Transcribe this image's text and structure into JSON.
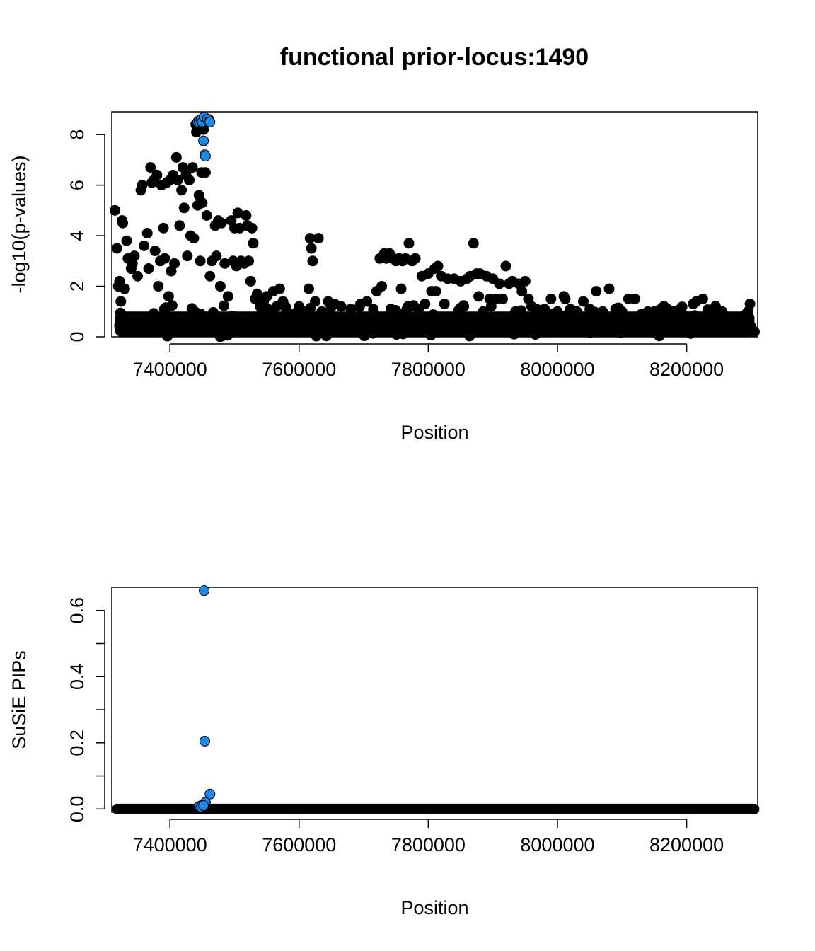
{
  "title": "functional prior-locus:1490",
  "colors": {
    "background": "#ffffff",
    "points": "#000000",
    "highlight": "#1e88e5"
  },
  "chart_data": [
    {
      "type": "scatter",
      "xlabel": "Position",
      "ylabel": "-log10(p-values)",
      "xlim": [
        7310000,
        8310000
      ],
      "ylim": [
        0,
        8.9
      ],
      "xticks": [
        7400000,
        7600000,
        7800000,
        8000000,
        8200000
      ],
      "xtick_labels": [
        "7400000",
        "7600000",
        "7800000",
        "8000000",
        "8200000"
      ],
      "yticks": [
        0,
        2,
        4,
        6,
        8
      ],
      "ytick_labels": [
        "0",
        "2",
        "4",
        "6",
        "8"
      ],
      "grid": false,
      "series": [
        {
          "points": [
            [
              7315000,
              5.0
            ],
            [
              7318000,
              3.5
            ],
            [
              7320000,
              2.0
            ],
            [
              7322000,
              2.2
            ],
            [
              7324000,
              1.4
            ],
            [
              7326000,
              4.6
            ],
            [
              7327000,
              4.5
            ],
            [
              7330000,
              1.9
            ],
            [
              7333000,
              3.8
            ],
            [
              7335000,
              3.1
            ],
            [
              7340000,
              2.7
            ],
            [
              7342000,
              2.9
            ],
            [
              7345000,
              3.2
            ],
            [
              7350000,
              2.4
            ],
            [
              7355000,
              5.8
            ],
            [
              7357000,
              6.0
            ],
            [
              7360000,
              3.6
            ],
            [
              7365000,
              4.1
            ],
            [
              7367000,
              2.7
            ],
            [
              7370000,
              6.7
            ],
            [
              7372000,
              6.1
            ],
            [
              7375000,
              6.2
            ],
            [
              7377000,
              3.4
            ],
            [
              7380000,
              6.4
            ],
            [
              7382000,
              2.0
            ],
            [
              7385000,
              3.0
            ],
            [
              7387000,
              6.0
            ],
            [
              7390000,
              4.3
            ],
            [
              7392000,
              3.1
            ],
            [
              7395000,
              6.1
            ],
            [
              7398000,
              1.6
            ],
            [
              7400000,
              6.2
            ],
            [
              7402000,
              2.6
            ],
            [
              7405000,
              6.4
            ],
            [
              7407000,
              2.9
            ],
            [
              7410000,
              7.1
            ],
            [
              7412000,
              6.2
            ],
            [
              7415000,
              4.4
            ],
            [
              7418000,
              5.8
            ],
            [
              7420000,
              6.7
            ],
            [
              7422000,
              5.1
            ],
            [
              7425000,
              6.4
            ],
            [
              7427000,
              3.2
            ],
            [
              7430000,
              6.2
            ],
            [
              7432000,
              4.0
            ],
            [
              7435000,
              6.7
            ],
            [
              7437000,
              3.9
            ],
            [
              7440000,
              8.4
            ],
            [
              7441000,
              8.1
            ],
            [
              7443000,
              5.2
            ],
            [
              7445000,
              5.6
            ],
            [
              7447000,
              3.0
            ],
            [
              7449000,
              6.5
            ],
            [
              7450000,
              5.3
            ],
            [
              7452000,
              8.2
            ],
            [
              7455000,
              6.5
            ],
            [
              7457000,
              4.8
            ],
            [
              7460000,
              8.6
            ],
            [
              7462000,
              2.4
            ],
            [
              7465000,
              3.0
            ],
            [
              7470000,
              4.4
            ],
            [
              7472000,
              3.2
            ],
            [
              7475000,
              4.6
            ],
            [
              7478000,
              2.0
            ],
            [
              7480000,
              4.5
            ],
            [
              7485000,
              2.9
            ],
            [
              7490000,
              1.6
            ],
            [
              7495000,
              4.6
            ],
            [
              7498000,
              3.0
            ],
            [
              7500000,
              4.3
            ],
            [
              7503000,
              2.8
            ],
            [
              7505000,
              4.9
            ],
            [
              7508000,
              4.3
            ],
            [
              7510000,
              3.0
            ],
            [
              7515000,
              2.9
            ],
            [
              7518000,
              4.8
            ],
            [
              7520000,
              4.4
            ],
            [
              7522000,
              3.0
            ],
            [
              7525000,
              2.2
            ],
            [
              7527000,
              4.3
            ],
            [
              7529000,
              3.7
            ],
            [
              7532000,
              1.5
            ],
            [
              7535000,
              1.7
            ],
            [
              7540000,
              1.2
            ],
            [
              7545000,
              1.4
            ],
            [
              7550000,
              1.6
            ],
            [
              7555000,
              1.0
            ],
            [
              7560000,
              1.8
            ],
            [
              7565000,
              1.2
            ],
            [
              7570000,
              1.9
            ],
            [
              7575000,
              1.4
            ],
            [
              7580000,
              1.1
            ],
            [
              7590000,
              0.8
            ],
            [
              7600000,
              1.2
            ],
            [
              7610000,
              1.0
            ],
            [
              7615000,
              1.9
            ],
            [
              7617000,
              3.9
            ],
            [
              7619000,
              3.5
            ],
            [
              7621000,
              3.0
            ],
            [
              7625000,
              1.4
            ],
            [
              7630000,
              3.9
            ],
            [
              7635000,
              1.0
            ],
            [
              7645000,
              1.4
            ],
            [
              7655000,
              1.3
            ],
            [
              7665000,
              1.2
            ],
            [
              7680000,
              1.1
            ],
            [
              7695000,
              1.3
            ],
            [
              7705000,
              1.4
            ],
            [
              7715000,
              1.1
            ],
            [
              7720000,
              1.8
            ],
            [
              7725000,
              3.1
            ],
            [
              7728000,
              2.0
            ],
            [
              7732000,
              3.3
            ],
            [
              7735000,
              3.1
            ],
            [
              7740000,
              3.3
            ],
            [
              7742000,
              1.1
            ],
            [
              7746000,
              3.1
            ],
            [
              7750000,
              3.0
            ],
            [
              7755000,
              3.1
            ],
            [
              7758000,
              1.9
            ],
            [
              7760000,
              3.0
            ],
            [
              7765000,
              3.1
            ],
            [
              7770000,
              3.7
            ],
            [
              7775000,
              3.0
            ],
            [
              7780000,
              3.1
            ],
            [
              7785000,
              1.1
            ],
            [
              7790000,
              2.4
            ],
            [
              7795000,
              1.3
            ],
            [
              7800000,
              2.5
            ],
            [
              7805000,
              1.8
            ],
            [
              7810000,
              2.7
            ],
            [
              7812000,
              1.8
            ],
            [
              7815000,
              2.8
            ],
            [
              7820000,
              2.4
            ],
            [
              7825000,
              1.3
            ],
            [
              7830000,
              2.3
            ],
            [
              7840000,
              2.3
            ],
            [
              7850000,
              2.2
            ],
            [
              7855000,
              1.2
            ],
            [
              7860000,
              2.3
            ],
            [
              7865000,
              2.4
            ],
            [
              7870000,
              3.7
            ],
            [
              7875000,
              2.5
            ],
            [
              7878000,
              1.6
            ],
            [
              7880000,
              2.5
            ],
            [
              7885000,
              1.0
            ],
            [
              7890000,
              2.4
            ],
            [
              7895000,
              1.5
            ],
            [
              7900000,
              2.3
            ],
            [
              7905000,
              1.5
            ],
            [
              7910000,
              2.1
            ],
            [
              7915000,
              1.5
            ],
            [
              7920000,
              2.8
            ],
            [
              7925000,
              2.1
            ],
            [
              7930000,
              2.2
            ],
            [
              7935000,
              1.0
            ],
            [
              7940000,
              2.1
            ],
            [
              7945000,
              1.8
            ],
            [
              7950000,
              2.2
            ],
            [
              7955000,
              1.5
            ],
            [
              7960000,
              1.2
            ],
            [
              7970000,
              1.0
            ],
            [
              7980000,
              1.1
            ],
            [
              7990000,
              1.5
            ],
            [
              8000000,
              1.0
            ],
            [
              8010000,
              1.6
            ],
            [
              8012000,
              1.5
            ],
            [
              8020000,
              1.1
            ],
            [
              8030000,
              1.0
            ],
            [
              8040000,
              1.4
            ],
            [
              8050000,
              1.1
            ],
            [
              8060000,
              1.8
            ],
            [
              8070000,
              1.0
            ],
            [
              8080000,
              1.9
            ],
            [
              8090000,
              1.1
            ],
            [
              8100000,
              1.0
            ],
            [
              8110000,
              1.5
            ],
            [
              8120000,
              1.5
            ],
            [
              8130000,
              0.9
            ],
            [
              8140000,
              1.0
            ],
            [
              8150000,
              1.0
            ],
            [
              8160000,
              1.1
            ],
            [
              8170000,
              1.1
            ],
            [
              8180000,
              1.0
            ],
            [
              8190000,
              1.1
            ],
            [
              8200000,
              0.8
            ],
            [
              8210000,
              1.3
            ],
            [
              8215000,
              1.4
            ],
            [
              8225000,
              1.5
            ],
            [
              8235000,
              0.8
            ],
            [
              8245000,
              0.9
            ],
            [
              8255000,
              1.0
            ],
            [
              8265000,
              0.6
            ],
            [
              8275000,
              0.5
            ],
            [
              8285000,
              0.6
            ],
            [
              8292000,
              0.9
            ],
            [
              8295000,
              1.0
            ],
            [
              8298000,
              1.3
            ],
            [
              8300000,
              0.4
            ],
            [
              8305000,
              0.2
            ]
          ]
        },
        {
          "points": [
            [
              7443000,
              8.5
            ],
            [
              7445000,
              8.55
            ],
            [
              7448000,
              8.6
            ],
            [
              7450000,
              8.5
            ],
            [
              7452000,
              7.75
            ],
            [
              7453000,
              8.7
            ],
            [
              7454000,
              7.2
            ],
            [
              7455000,
              7.15
            ],
            [
              7458000,
              8.6
            ],
            [
              7460000,
              8.5
            ],
            [
              7462000,
              8.5
            ]
          ]
        }
      ],
      "baseline_band": {
        "from_x": 7315000,
        "to_x": 8305000,
        "y_max": 1.0
      }
    },
    {
      "type": "scatter",
      "xlabel": "Position",
      "ylabel": "SuSiE PIPs",
      "xlim": [
        7310000,
        8310000
      ],
      "ylim": [
        -0.01,
        0.67
      ],
      "xticks": [
        7400000,
        7600000,
        7800000,
        8000000,
        8200000
      ],
      "xtick_labels": [
        "7400000",
        "7600000",
        "7800000",
        "8000000",
        "8200000"
      ],
      "yticks": [
        0.0,
        0.2,
        0.4,
        0.6
      ],
      "ytick_labels": [
        "0.0",
        "0.2",
        "0.4",
        "0.6"
      ],
      "yminor_ticks": [
        0.1,
        0.3,
        0.5
      ],
      "grid": false,
      "series": [
        {
          "baseline": {
            "from_x": 7318000,
            "to_x": 8305000,
            "y": 0.0
          }
        },
        {
          "points": [
            [
              7453000,
              0.66
            ],
            [
              7454000,
              0.205
            ],
            [
              7462000,
              0.045
            ],
            [
              7455000,
              0.02
            ],
            [
              7450000,
              0.012
            ],
            [
              7445000,
              0.008
            ],
            [
              7448000,
              0.006
            ],
            [
              7452000,
              0.01
            ]
          ]
        }
      ]
    }
  ]
}
